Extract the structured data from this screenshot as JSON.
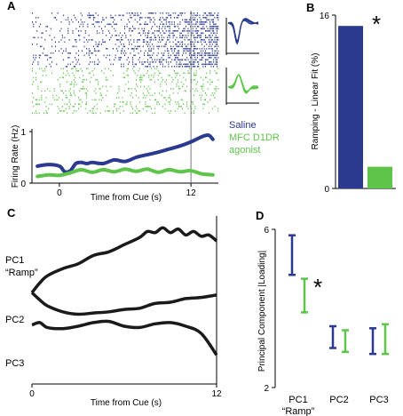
{
  "colors": {
    "saline": "#2b3990",
    "agonist": "#5ec44a",
    "ink": "#000000"
  },
  "chart_data": [
    {
      "panel_label": "A",
      "type": "line",
      "title": "",
      "xlabel": "Time from Cue (s)",
      "ylabel": "Firing Rate (Hz)",
      "x_ticks": [
        "0",
        "12"
      ],
      "y_ticks": [
        "0",
        "1"
      ],
      "xlim": [
        -2.5,
        14.5
      ],
      "ylim": [
        0,
        1
      ],
      "cue_marker": 12,
      "legend": [
        "Saline",
        "MFC D1DR",
        "agonist"
      ],
      "series": [
        {
          "name": "Saline",
          "x": [
            -2,
            -1,
            0,
            0.5,
            1,
            1.5,
            2,
            2.5,
            3,
            4,
            5,
            6,
            7,
            8,
            9,
            10,
            11,
            12,
            13,
            13.6,
            14
          ],
          "y": [
            0.33,
            0.36,
            0.33,
            0.22,
            0.24,
            0.38,
            0.4,
            0.38,
            0.4,
            0.38,
            0.45,
            0.42,
            0.5,
            0.55,
            0.6,
            0.66,
            0.72,
            0.8,
            0.9,
            0.93,
            0.85
          ]
        },
        {
          "name": "MFC D1DR agonist",
          "x": [
            -2,
            -1,
            0,
            1,
            2,
            3,
            4,
            5,
            6,
            7,
            8,
            9,
            10,
            11,
            12,
            13,
            14
          ],
          "y": [
            0.13,
            0.16,
            0.15,
            0.2,
            0.26,
            0.21,
            0.26,
            0.22,
            0.27,
            0.23,
            0.27,
            0.21,
            0.26,
            0.22,
            0.24,
            0.18,
            0.16
          ]
        }
      ]
    },
    {
      "panel_label": "B",
      "type": "bar",
      "title": "",
      "xlabel": "",
      "ylabel": "Ramping - Linear Fit (%)",
      "y_ticks": [
        "0",
        "16"
      ],
      "ylim": [
        0,
        16
      ],
      "significance": "*",
      "categories": [
        "Saline",
        "MFC D1DR agonist"
      ],
      "values": [
        15,
        2
      ]
    },
    {
      "panel_label": "C",
      "type": "line",
      "title": "",
      "xlabel": "Time from Cue (s)",
      "ylabel": "",
      "x_ticks": [
        "0",
        "12"
      ],
      "xlim": [
        0,
        12
      ],
      "series_labels": [
        "PC1",
        "“Ramp”",
        "PC2",
        "PC3"
      ],
      "series": [
        {
          "name": "PC1",
          "x": [
            0,
            0.5,
            1,
            2,
            3,
            4,
            5,
            6,
            7,
            7.5,
            8,
            8.5,
            9,
            9.5,
            10,
            10.5,
            11,
            11.5,
            12
          ],
          "y": [
            0.4,
            0.8,
            1.1,
            1.4,
            1.6,
            1.95,
            2.1,
            2.4,
            2.7,
            2.95,
            2.9,
            3.1,
            2.9,
            3.05,
            2.8,
            2.95,
            2.75,
            2.8,
            2.55
          ]
        },
        {
          "name": "PC2",
          "x": [
            0,
            0.5,
            1,
            2,
            3,
            4,
            5,
            6,
            7,
            8,
            9,
            10,
            11,
            12
          ],
          "y": [
            0.4,
            0.1,
            -0.15,
            -0.4,
            -0.5,
            -0.45,
            -0.4,
            -0.3,
            -0.25,
            -0.05,
            0.0,
            0.15,
            0.2,
            0.3
          ]
        },
        {
          "name": "PC3",
          "x": [
            0,
            0.5,
            1,
            2,
            3,
            4,
            5,
            6,
            7,
            8,
            9,
            10,
            11,
            12
          ],
          "y": [
            -0.95,
            -0.85,
            -1.05,
            -1.1,
            -1.0,
            -0.85,
            -0.8,
            -1.0,
            -1.05,
            -0.9,
            -0.85,
            -1.0,
            -1.3,
            -2.2
          ]
        }
      ]
    },
    {
      "panel_label": "D",
      "type": "scatter",
      "title": "",
      "xlabel": "",
      "ylabel": "Principal Component |Loading|",
      "y_ticks": [
        "2",
        "6"
      ],
      "ylim": [
        2,
        6
      ],
      "significance": "*",
      "categories": [
        "PC1",
        "PC2",
        "PC3"
      ],
      "category_sublabels": [
        "“Ramp”",
        "",
        ""
      ],
      "series": [
        {
          "name": "Saline",
          "low": [
            4.85,
            3.0,
            2.85
          ],
          "high": [
            5.85,
            3.55,
            3.5
          ]
        },
        {
          "name": "MFC D1DR agonist",
          "low": [
            3.9,
            2.9,
            2.85
          ],
          "high": [
            4.75,
            3.45,
            3.6
          ]
        }
      ]
    }
  ],
  "decorations": {
    "waveform_scale_label": "",
    "note": ""
  }
}
